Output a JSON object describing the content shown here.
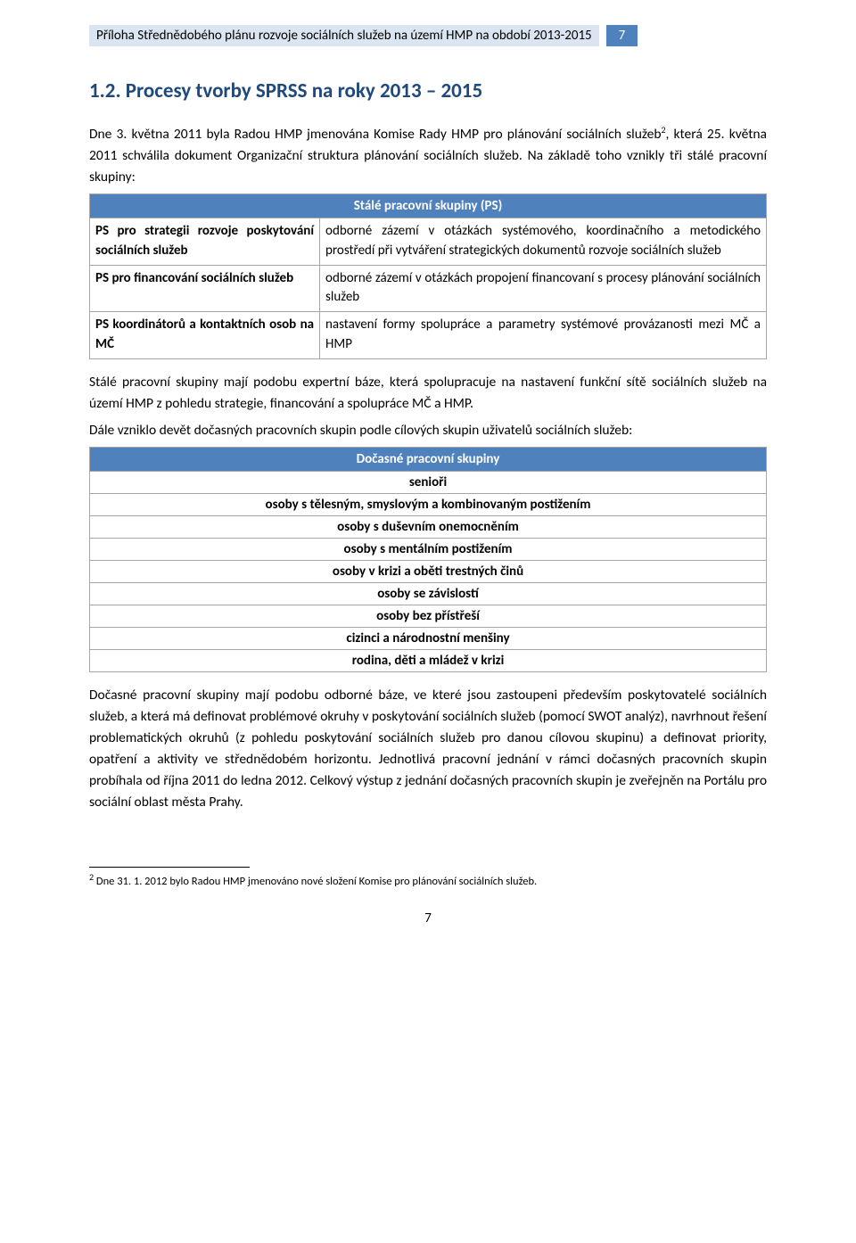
{
  "header": {
    "title": "Příloha Střednědobého plánu rozvoje sociálních služeb na území HMP na období 2013-2015",
    "page_badge": "7"
  },
  "heading": "1.2. Procesy tvorby SPRSS na roky 2013 – 2015",
  "para1_a": "Dne 3. května 2011 byla Radou HMP jmenována Komise Rady HMP pro plánování sociálních služeb",
  "para1_sup": "2",
  "para1_b": ", která 25. května 2011 schválila dokument Organizační struktura plánování sociálních služeb. Na základě toho vznikly tři stálé pracovní skupiny:",
  "table1": {
    "header": "Stálé pracovní skupiny (PS)",
    "rows": [
      {
        "label": "PS pro strategii rozvoje poskytování sociálních služeb",
        "desc": "odborné zázemí v otázkách systémového, koordinačního a metodického prostředí při vytváření strategických dokumentů rozvoje sociálních služeb"
      },
      {
        "label": "PS pro financování sociálních služeb",
        "desc": "odborné zázemí v otázkách propojení financovaní s procesy plánování sociálních služeb"
      },
      {
        "label": "PS koordinátorů a kontaktních osob na MČ",
        "desc": "nastavení formy spolupráce a parametry systémové provázanosti mezi MČ a HMP"
      }
    ]
  },
  "para2": "Stálé pracovní skupiny mají podobu expertní báze, která spolupracuje na nastavení funkční sítě sociálních služeb na území HMP z pohledu strategie, financování a spolupráce MČ a HMP.",
  "para3": "Dále vzniklo devět dočasných pracovních skupin podle cílových skupin uživatelů sociálních služeb:",
  "table2": {
    "header": "Dočasné pracovní skupiny",
    "rows": [
      "senioři",
      "osoby s tělesným, smyslovým a kombinovaným postižením",
      "osoby s duševním onemocněním",
      "osoby s mentálním postižením",
      "osoby v krizi a oběti trestných činů",
      "osoby se závislostí",
      "osoby bez přístřeší",
      "cizinci a národnostní menšiny",
      "rodina, děti a mládež v krizi"
    ]
  },
  "para4": "Dočasné pracovní skupiny mají podobu odborné báze, ve které jsou zastoupeni především poskytovatelé sociálních služeb, a která má definovat problémové okruhy v poskytování sociálních služeb (pomocí SWOT analýz), navrhnout řešení problematických okruhů (z pohledu poskytování sociálních služeb pro danou cílovou skupinu) a definovat priority, opatření a aktivity ve střednědobém horizontu. Jednotlivá pracovní jednání v rámci dočasných pracovních skupin probíhala od října 2011 do ledna 2012. Celkový výstup z jednání dočasných pracovních skupin je zveřejněn na Portálu pro sociální oblast města Prahy.",
  "footnote": {
    "num": "2",
    "text": " Dne 31. 1. 2012 bylo Radou HMP jmenováno nové složení Komise pro plánování sociálních služeb."
  },
  "page_number": "7",
  "colors": {
    "header_bg": "#dbe5f1",
    "badge_bg": "#4f81bd",
    "heading_color": "#1f497d",
    "table_header_bg": "#4f81bd",
    "border_color": "#a6a6a6"
  }
}
